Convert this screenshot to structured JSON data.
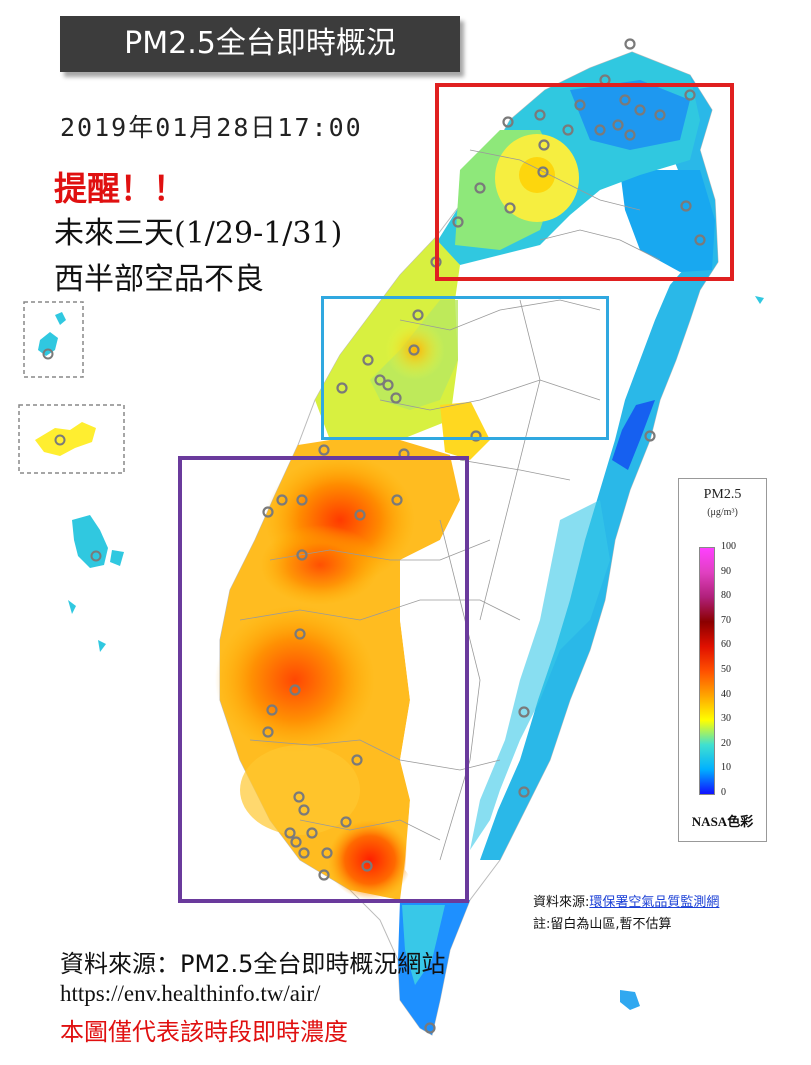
{
  "title": "PM2.5全台即時概況",
  "timestamp": "2019年01月28日17:00",
  "reminder": "提醒！！",
  "forecast_line1": "未來三天(1/29-1/31)",
  "forecast_line2": "西半部空品不良",
  "legend": {
    "title": "PM2.5",
    "unit": "(μg/m³)",
    "ticks": [
      "100",
      "90",
      "80",
      "70",
      "60",
      "50",
      "40",
      "30",
      "20",
      "10",
      "0"
    ],
    "footer": "NASA色彩"
  },
  "data_source_prefix": "資料來源:",
  "data_source_link": "環保署空氣品質監測網",
  "note": "註:留白為山區,暫不估算",
  "source_line1": "資料來源：PM2.5全台即時概況網站",
  "source_url": "https://env.healthinfo.tw/air/",
  "disclaimer": "本圖僅代表該時段即時濃度",
  "colors": {
    "north_box": "#e02020",
    "central_box": "#30a8e0",
    "south_box": "#6a3a9c",
    "reminder_text": "#e01010"
  }
}
